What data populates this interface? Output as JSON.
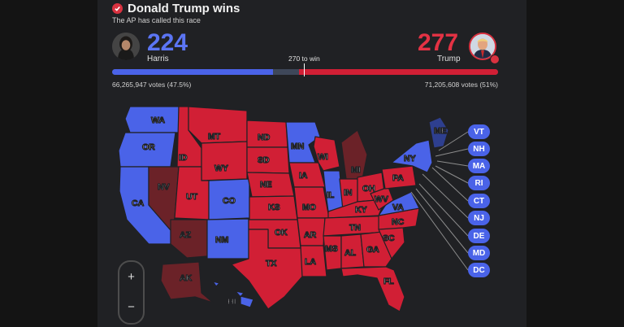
{
  "header": {
    "title": "Donald Trump wins",
    "subtitle": "The AP has called this race"
  },
  "harris": {
    "name": "Harris",
    "electoral_votes": "224",
    "popular_votes": "66,265,947 votes (47.5%)"
  },
  "trump": {
    "name": "Trump",
    "electoral_votes": "277",
    "popular_votes": "71,205,608 votes (51%)"
  },
  "progress": {
    "threshold_label": "270 to win",
    "harris_share": 0.416,
    "trump_share": 0.515,
    "total": 538
  },
  "colors": {
    "dem": "#4a63e8",
    "dem_leading": "#2e3f8f",
    "rep": "#d11f35",
    "rep_leading": "#6b2228",
    "background": "#202124"
  },
  "states": [
    {
      "code": "WA",
      "party": "dem"
    },
    {
      "code": "OR",
      "party": "dem"
    },
    {
      "code": "CA",
      "party": "dem"
    },
    {
      "code": "NV",
      "party": "rep_leading"
    },
    {
      "code": "AZ",
      "party": "rep_leading"
    },
    {
      "code": "ID",
      "party": "rep"
    },
    {
      "code": "MT",
      "party": "rep"
    },
    {
      "code": "WY",
      "party": "rep"
    },
    {
      "code": "UT",
      "party": "rep"
    },
    {
      "code": "CO",
      "party": "dem"
    },
    {
      "code": "NM",
      "party": "dem"
    },
    {
      "code": "ND",
      "party": "rep"
    },
    {
      "code": "SD",
      "party": "rep"
    },
    {
      "code": "NE",
      "party": "rep"
    },
    {
      "code": "KS",
      "party": "rep"
    },
    {
      "code": "OK",
      "party": "rep"
    },
    {
      "code": "TX",
      "party": "rep"
    },
    {
      "code": "MN",
      "party": "dem"
    },
    {
      "code": "IA",
      "party": "rep"
    },
    {
      "code": "MO",
      "party": "rep"
    },
    {
      "code": "AR",
      "party": "rep"
    },
    {
      "code": "LA",
      "party": "rep"
    },
    {
      "code": "WI",
      "party": "rep"
    },
    {
      "code": "IL",
      "party": "dem"
    },
    {
      "code": "MI",
      "party": "rep_leading"
    },
    {
      "code": "IN",
      "party": "rep"
    },
    {
      "code": "OH",
      "party": "rep"
    },
    {
      "code": "KY",
      "party": "rep"
    },
    {
      "code": "TN",
      "party": "rep"
    },
    {
      "code": "MS",
      "party": "rep"
    },
    {
      "code": "AL",
      "party": "rep"
    },
    {
      "code": "GA",
      "party": "rep"
    },
    {
      "code": "FL",
      "party": "rep"
    },
    {
      "code": "SC",
      "party": "rep"
    },
    {
      "code": "NC",
      "party": "rep"
    },
    {
      "code": "VA",
      "party": "dem"
    },
    {
      "code": "WV",
      "party": "rep"
    },
    {
      "code": "PA",
      "party": "rep"
    },
    {
      "code": "NY",
      "party": "dem"
    },
    {
      "code": "ME",
      "party": "dem_leading"
    },
    {
      "code": "AK",
      "party": "rep_leading"
    },
    {
      "code": "HI",
      "party": "dem"
    }
  ],
  "small_states": [
    "VT",
    "NH",
    "MA",
    "RI",
    "CT",
    "NJ",
    "DE",
    "MD",
    "DC"
  ],
  "zoom": {
    "in_label": "+",
    "out_label": "−"
  }
}
